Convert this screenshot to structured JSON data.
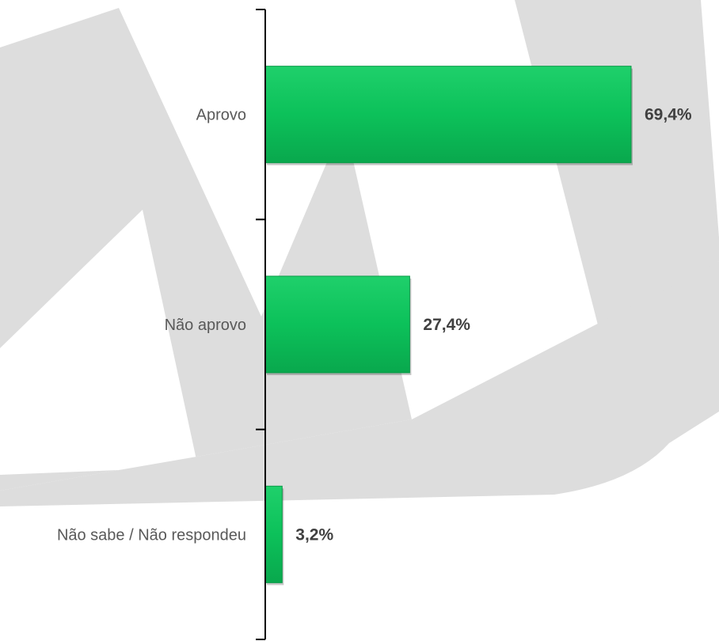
{
  "chart_data": {
    "type": "bar",
    "orientation": "horizontal",
    "categories": [
      "Aprovo",
      "Não aprovo",
      "Não sabe / Não respondeu"
    ],
    "values": [
      69.4,
      27.4,
      3.2
    ],
    "value_labels": [
      "69,4%",
      "27,4%",
      "3,2%"
    ],
    "title": "",
    "xlabel": "",
    "ylabel": "",
    "xlim": [
      0,
      70
    ],
    "grid": false,
    "legend": "none"
  },
  "colors": {
    "bar_fill": "#0cc15a",
    "bar_stroke": "#0a9a48",
    "axis": "#000000",
    "watermark": "#dcdcdc",
    "category_text": "#595959",
    "value_text": "#404040"
  }
}
